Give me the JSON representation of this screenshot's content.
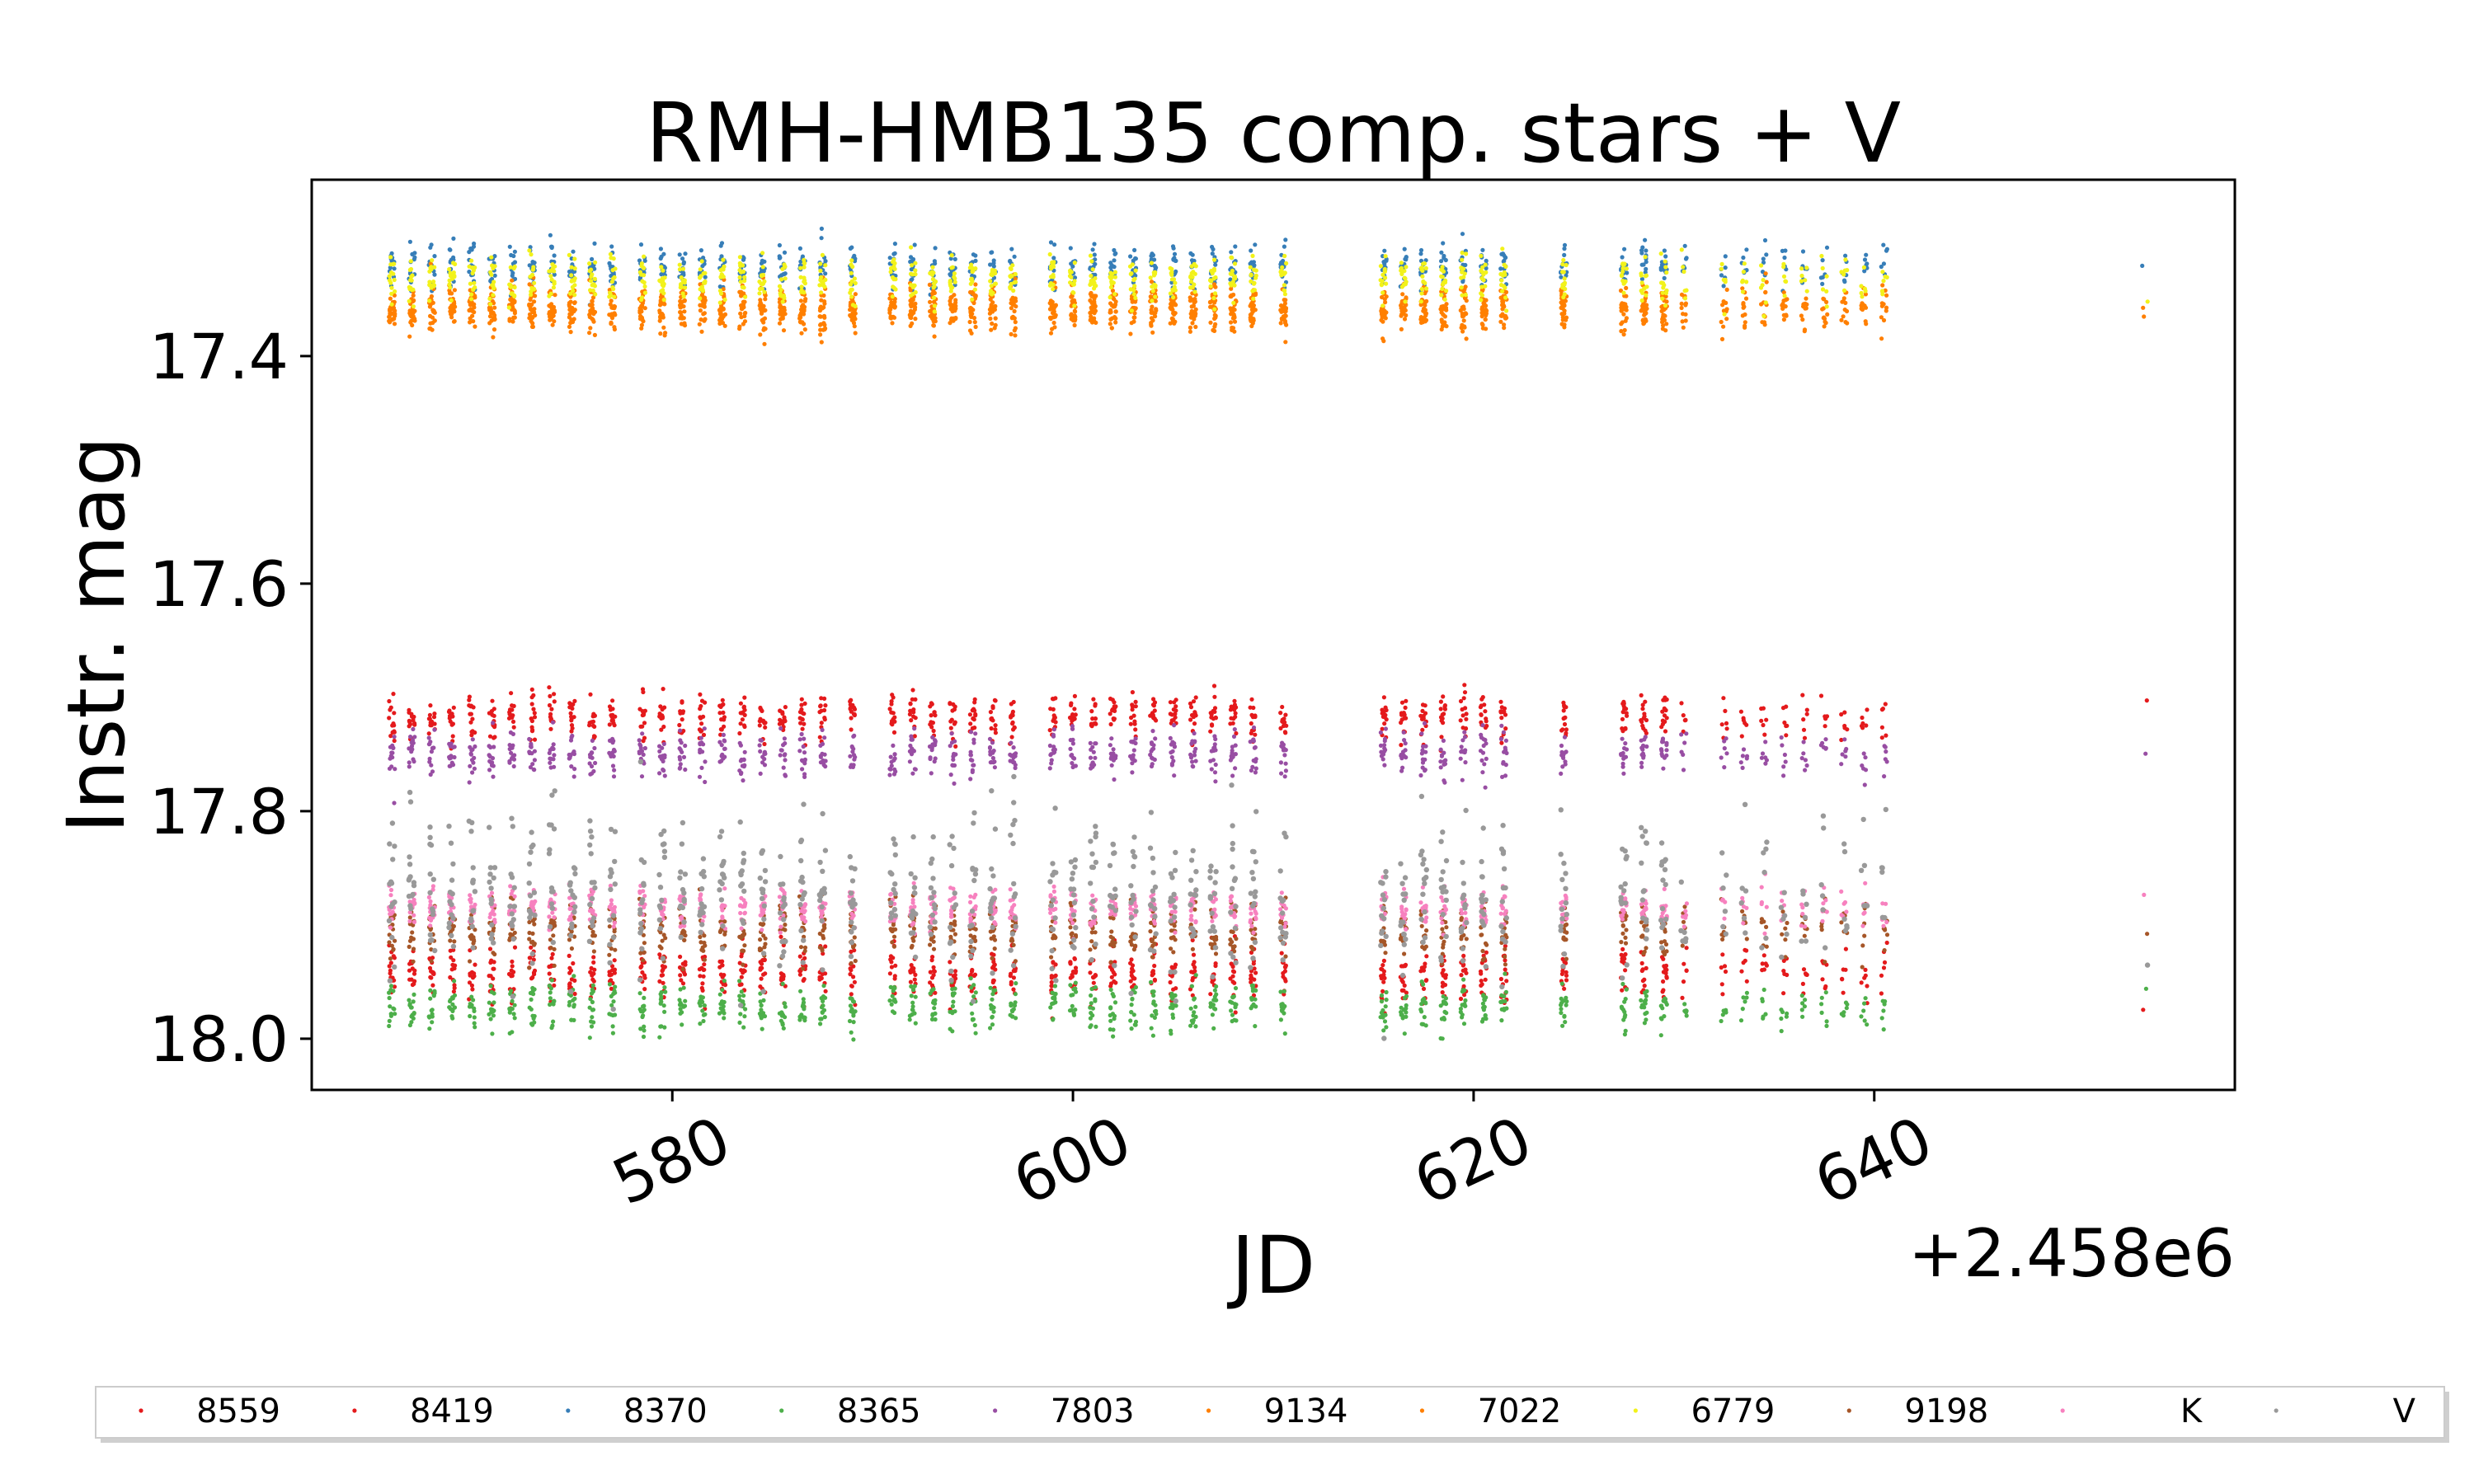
{
  "chart_data": {
    "type": "scatter",
    "title": "RMH-HMB135 comp. stars + V",
    "xlabel": "JD",
    "ylabel": "Instr. mag",
    "x_offset_text": "+2.458e6",
    "x_offset": 2458000,
    "xlim": [
      562,
      658
    ],
    "ylim": [
      18.045,
      17.245
    ],
    "y_inverted": true,
    "xticks": [
      580,
      600,
      620,
      640
    ],
    "yticks": [
      17.4,
      17.6,
      17.8,
      18.0
    ],
    "xtick_labels": [
      "580",
      "600",
      "620",
      "640"
    ],
    "ytick_labels": [
      "17.4",
      "17.6",
      "17.8",
      "18.0"
    ],
    "grid": false,
    "legend_placement": "bottom, below axes, horizontal",
    "legend_order": [
      "8559",
      "8419",
      "8370",
      "8365",
      "7803",
      "9134",
      "7022",
      "6779",
      "9198",
      "K",
      "V"
    ],
    "observation_nights": [
      566,
      567,
      568,
      569,
      570,
      571,
      572,
      573,
      574,
      575,
      576,
      577,
      578.5,
      579.5,
      580.5,
      581.5,
      582.5,
      583.5,
      584.5,
      585.5,
      586.5,
      587.5,
      589,
      591,
      592,
      593,
      594,
      595,
      596,
      597,
      599,
      600,
      601,
      602,
      603,
      604,
      605,
      606,
      607,
      608,
      609,
      610.5,
      615.5,
      616.5,
      617.5,
      618.5,
      619.5,
      620.5,
      621.5,
      624.5,
      627.5,
      628.5,
      629.5,
      630.5,
      632.5,
      633.5,
      634.5,
      635.5,
      636.5,
      637.5,
      638.5,
      639.5,
      640.5,
      653.5
    ],
    "series": [
      {
        "name": "8559",
        "color": "#e41a1c",
        "mean_mag": 17.942,
        "scatter": 0.012
      },
      {
        "name": "8419",
        "color": "#e41a1c",
        "mean_mag": 17.717,
        "scatter": 0.01
      },
      {
        "name": "8370",
        "color": "#377eb8",
        "mean_mag": 17.322,
        "scatter": 0.01
      },
      {
        "name": "8365",
        "color": "#4daf4a",
        "mean_mag": 17.972,
        "scatter": 0.01
      },
      {
        "name": "7803",
        "color": "#984ea3",
        "mean_mag": 17.75,
        "scatter": 0.01
      },
      {
        "name": "9134",
        "color": "#ff7f00",
        "mean_mag": 17.362,
        "scatter": 0.009
      },
      {
        "name": "7022",
        "color": "#ff7f00",
        "mean_mag": 17.355,
        "scatter": 0.009
      },
      {
        "name": "6779",
        "color": "#f2f21a",
        "mean_mag": 17.333,
        "scatter": 0.01
      },
      {
        "name": "9198",
        "color": "#a65628",
        "mean_mag": 17.905,
        "scatter": 0.012
      },
      {
        "name": "K",
        "color": "#f781bf",
        "mean_mag": 17.885,
        "scatter": 0.009
      },
      {
        "name": "V",
        "color": "#999999",
        "mean_mag": 17.875,
        "scatter": 0.035
      }
    ]
  }
}
